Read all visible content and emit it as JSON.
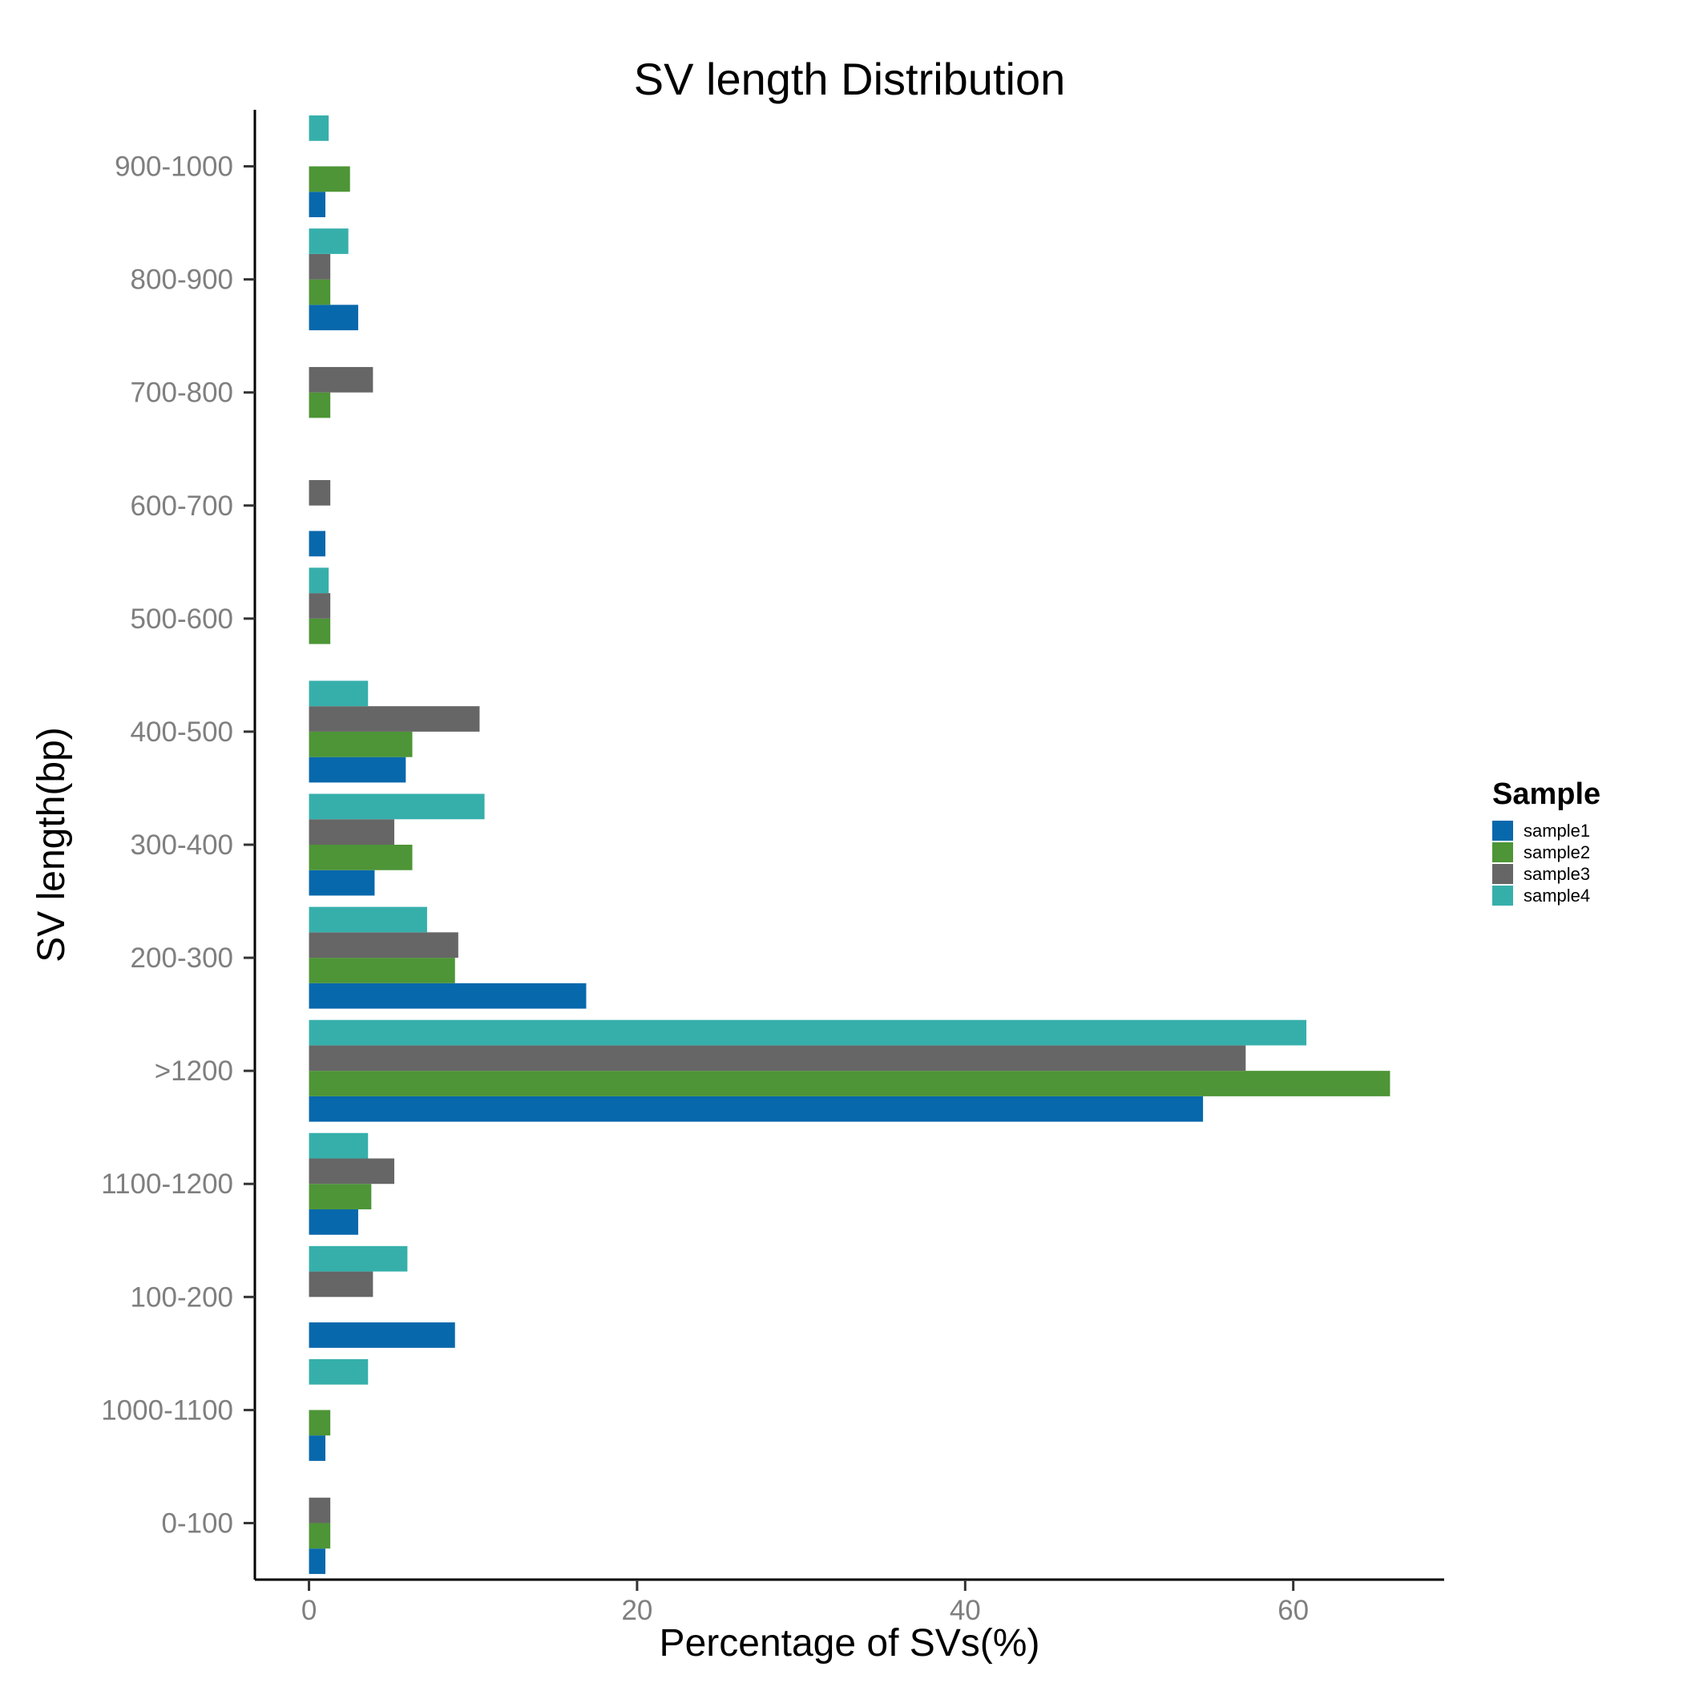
{
  "chart_data": {
    "type": "bar",
    "orientation": "horizontal",
    "title": "SV length Distribution",
    "xlabel": "Percentage of SVs(%)",
    "ylabel": "SV length(bp)",
    "xlim": [
      -3.3,
      69.2
    ],
    "xticks": [
      0,
      20,
      40,
      60
    ],
    "grid": false,
    "legend_position": "right",
    "legend_title": "Sample",
    "categories": [
      "0-100",
      "1000-1100",
      "100-200",
      "1100-1200",
      ">1200",
      "200-300",
      "300-400",
      "400-500",
      "500-600",
      "600-700",
      "700-800",
      "800-900",
      "900-1000"
    ],
    "series": [
      {
        "name": "sample1",
        "color": "#0868ac",
        "values": [
          1.0,
          1.0,
          8.9,
          3.0,
          54.5,
          16.9,
          4.0,
          5.9,
          0,
          1.0,
          0,
          3.0,
          1.0
        ]
      },
      {
        "name": "sample2",
        "color": "#4d9536",
        "values": [
          1.3,
          1.3,
          0,
          3.8,
          65.9,
          8.9,
          6.3,
          6.3,
          1.3,
          0,
          1.3,
          1.3,
          2.5
        ]
      },
      {
        "name": "sample3",
        "color": "#666666",
        "values": [
          1.3,
          0,
          3.9,
          5.2,
          57.1,
          9.1,
          5.2,
          10.4,
          1.3,
          1.3,
          3.9,
          1.3,
          0
        ]
      },
      {
        "name": "sample4",
        "color": "#36afab",
        "values": [
          0,
          3.6,
          6.0,
          3.6,
          60.8,
          7.2,
          10.7,
          3.6,
          1.2,
          0,
          0,
          2.4,
          1.2
        ]
      }
    ]
  }
}
